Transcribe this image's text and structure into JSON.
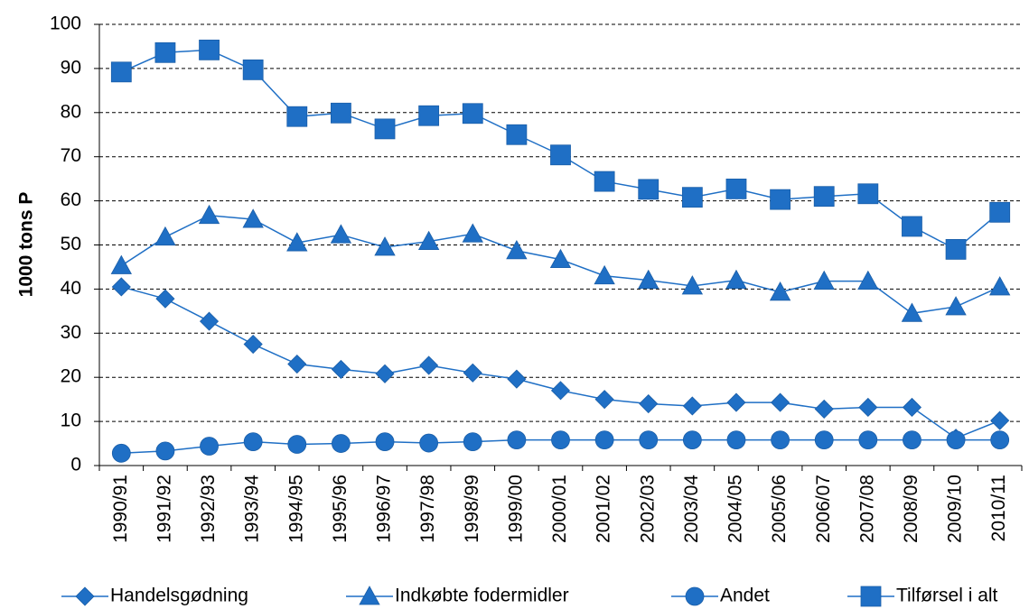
{
  "chart_data": {
    "type": "line",
    "y_label": "1000 tons P",
    "categories": [
      "1990/91",
      "1991/92",
      "1992/93",
      "1993/94",
      "1994/95",
      "1995/96",
      "1996/97",
      "1997/98",
      "1998/99",
      "1999/00",
      "2000/01",
      "2001/02",
      "2002/03",
      "2003/04",
      "2004/05",
      "2005/06",
      "2006/07",
      "2007/08",
      "2008/09",
      "2009/10",
      "2010/11"
    ],
    "series": [
      {
        "name": "Handelsgødning",
        "color": "#1f6fc5",
        "marker": "diamond",
        "values": [
          40.5,
          37.8,
          32.7,
          27.5,
          23.0,
          21.8,
          20.8,
          22.7,
          21.0,
          19.6,
          17.0,
          15.0,
          14.0,
          13.5,
          14.3,
          14.3,
          12.8,
          13.2,
          13.2,
          6.2,
          10.2
        ]
      },
      {
        "name": "Indkøbte fodermidler",
        "color": "#1f6fc5",
        "marker": "triangle",
        "values": [
          45.3,
          51.8,
          56.7,
          55.8,
          50.5,
          52.3,
          49.5,
          50.8,
          52.5,
          48.7,
          46.7,
          43.0,
          42.0,
          40.7,
          42.0,
          39.3,
          41.8,
          41.8,
          34.5,
          36.0,
          40.5
        ]
      },
      {
        "name": "Andet",
        "color": "#1f6fc5",
        "marker": "circle",
        "values": [
          2.8,
          3.3,
          4.4,
          5.4,
          4.8,
          5.0,
          5.4,
          5.1,
          5.4,
          5.8,
          5.8,
          5.8,
          5.8,
          5.8,
          5.8,
          5.8,
          5.8,
          5.8,
          5.8,
          5.8,
          5.8
        ]
      },
      {
        "name": "Tilførsel i alt",
        "color": "#1f6fc5",
        "marker": "square",
        "values": [
          89.2,
          93.6,
          94.2,
          89.7,
          79.1,
          79.9,
          76.3,
          79.3,
          79.8,
          75.0,
          70.4,
          64.4,
          62.6,
          60.8,
          62.7,
          60.3,
          61.0,
          61.6,
          54.2,
          49.0,
          57.4
        ]
      }
    ],
    "ylim": [
      0,
      100
    ],
    "yticks": [
      0,
      10,
      20,
      30,
      40,
      50,
      60,
      70,
      80,
      90,
      100
    ],
    "grid": true,
    "legend": "bottom"
  }
}
